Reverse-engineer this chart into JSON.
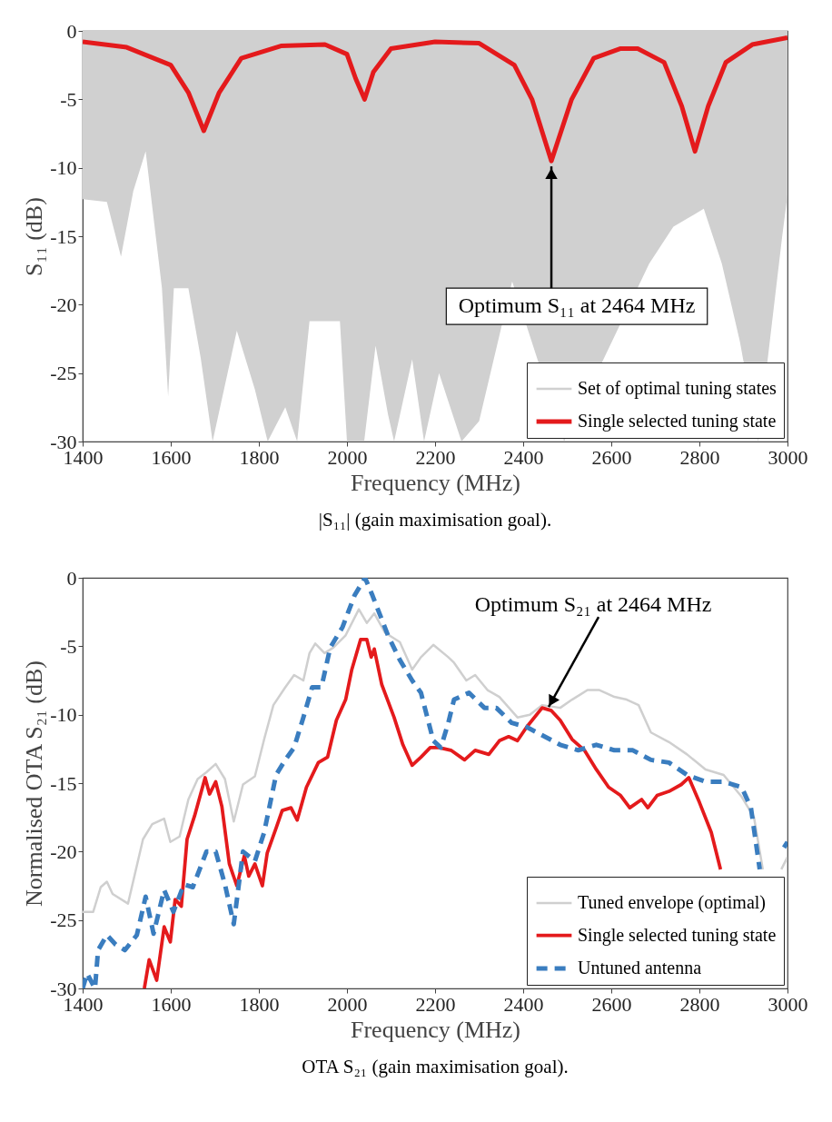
{
  "chart_data": [
    {
      "type": "line",
      "title": "|S₁₁| (gain maximisation goal).",
      "xlabel": "Frequency (MHz)",
      "ylabel": "S₁₁ (dB)",
      "xlim": [
        1400,
        3000
      ],
      "xticks": [
        1400,
        1600,
        1800,
        2000,
        2200,
        2400,
        2600,
        2800,
        3000
      ],
      "ylim": [
        -30,
        0
      ],
      "yticks": [
        -30,
        -25,
        -20,
        -15,
        -10,
        -5,
        0
      ],
      "grid": false,
      "legend": "bottom right",
      "annotations": [
        {
          "text": "Optimum S₁₁ at 2464 MHz",
          "x": 2464,
          "y": -9.5
        }
      ],
      "series": [
        {
          "type": "area",
          "name": "Set of optimal tuning states",
          "color": "#d0d0d0",
          "x": [
            1400,
            1455,
            1487,
            1515,
            1543,
            1580,
            1594,
            1607,
            1640,
            1668,
            1695,
            1750,
            1791,
            1820,
            1860,
            1887,
            1915,
            1950,
            1984,
            2000,
            2039,
            2065,
            2093,
            2107,
            2148,
            2175,
            2209,
            2260,
            2300,
            2375,
            2410,
            2493,
            2548,
            2617,
            2686,
            2741,
            2810,
            2851,
            2892,
            2933,
            2960,
            2988,
            3000
          ],
          "values": [
            -12.3,
            -12.5,
            -16.5,
            -11.7,
            -8.8,
            -18.8,
            -26.7,
            -18.8,
            -18.8,
            -23.9,
            -30,
            -21.9,
            -26.2,
            -30,
            -27.5,
            -30,
            -21.2,
            -21.2,
            -21.2,
            -30,
            -30,
            -23,
            -28,
            -30,
            -24,
            -30,
            -25,
            -30,
            -28.5,
            -18.3,
            null,
            -30,
            null,
            null,
            -17,
            -14.3,
            -13,
            -17,
            -22.7,
            -30,
            null,
            -15,
            -12
          ]
        },
        {
          "name": "Single selected tuning state",
          "color": "#e41a1c",
          "x": [
            1400,
            1500,
            1600,
            1640,
            1675,
            1710,
            1760,
            1850,
            1950,
            2000,
            2020,
            2040,
            2060,
            2100,
            2200,
            2300,
            2380,
            2420,
            2464,
            2510,
            2560,
            2620,
            2660,
            2720,
            2760,
            2790,
            2820,
            2860,
            2920,
            3000
          ],
          "values": [
            -0.8,
            -1.2,
            -2.5,
            -4.5,
            -7.3,
            -4.5,
            -2,
            -1.1,
            -1,
            -1.7,
            -3.5,
            -5,
            -3,
            -1.3,
            -0.8,
            -0.9,
            -2.5,
            -5,
            -9.5,
            -5,
            -2,
            -1.3,
            -1.3,
            -2.3,
            -5.5,
            -8.8,
            -5.5,
            -2.3,
            -1,
            -0.5
          ]
        }
      ]
    },
    {
      "type": "line",
      "title": "OTA S₂₁ (gain maximisation goal).",
      "xlabel": "Frequency (MHz)",
      "ylabel": "Normalised OTA S₂₁ (dB)",
      "xlim": [
        1400,
        3000
      ],
      "xticks": [
        1400,
        1600,
        1800,
        2000,
        2200,
        2400,
        2600,
        2800,
        3000
      ],
      "ylim": [
        -30,
        0
      ],
      "yticks": [
        -30,
        -25,
        -20,
        -15,
        -10,
        -5,
        0
      ],
      "grid": false,
      "legend": "bottom right",
      "annotations": [
        {
          "text": "Optimum S₂₁ at 2464 MHz",
          "x": 2464,
          "y": -9.7
        }
      ],
      "series": [
        {
          "name": "Tuned envelope (optimal)",
          "color": "#cfcfcf",
          "x": [
            1400,
            1424,
            1441,
            1455,
            1468,
            1503,
            1537,
            1558,
            1585,
            1599,
            1620,
            1640,
            1661,
            1681,
            1702,
            1723,
            1743,
            1764,
            1791,
            1812,
            1833,
            1860,
            1880,
            1901,
            1915,
            1928,
            1949,
            1969,
            1997,
            2027,
            2045,
            2062,
            2086,
            2120,
            2148,
            2168,
            2196,
            2230,
            2243,
            2271,
            2291,
            2319,
            2346,
            2387,
            2415,
            2443,
            2484,
            2511,
            2546,
            2573,
            2607,
            2635,
            2662,
            2690,
            2731,
            2772,
            2814,
            2855,
            2896,
            2924,
            2944,
            2965,
            2986,
            3000
          ],
          "values": [
            -24.4,
            -24.4,
            -22.6,
            -22.2,
            -23.1,
            -23.8,
            -19.1,
            -18,
            -17.6,
            -19.3,
            -18.9,
            -16.2,
            -14.7,
            -14.2,
            -13.6,
            -14.7,
            -17.8,
            -15.1,
            -14.5,
            -11.8,
            -9.3,
            -8,
            -7.1,
            -7.5,
            -5.5,
            -4.8,
            -5.5,
            -5.1,
            -4.2,
            -2.3,
            -3.3,
            -2.6,
            -4,
            -4.7,
            -6.7,
            -5.8,
            -4.9,
            -5.8,
            -6.2,
            -7.5,
            -7.1,
            -8.2,
            -8.7,
            -10.2,
            -10,
            -9.3,
            -9.5,
            -8.9,
            -8.2,
            -8.2,
            -8.7,
            -8.9,
            -9.3,
            -11.3,
            -12,
            -12.9,
            -14,
            -14.4,
            -16,
            -17.5,
            -21.3,
            null,
            -21.3,
            -20.4
          ]
        },
        {
          "name": "Single selected tuning state",
          "color": "#e41a1c",
          "x": [
            1540,
            1551,
            1568,
            1585,
            1599,
            1610,
            1624,
            1637,
            1654,
            1678,
            1688,
            1702,
            1716,
            1733,
            1750,
            1767,
            1777,
            1791,
            1808,
            1819,
            1839,
            1853,
            1873,
            1887,
            1908,
            1935,
            1956,
            1976,
            1997,
            2011,
            2031,
            2045,
            2055,
            2062,
            2079,
            2107,
            2127,
            2148,
            2168,
            2189,
            2209,
            2236,
            2267,
            2291,
            2322,
            2346,
            2367,
            2387,
            2408,
            2443,
            2464,
            2484,
            2511,
            2539,
            2566,
            2594,
            2621,
            2642,
            2669,
            2683,
            2704,
            2731,
            2759,
            2776,
            2800,
            2827,
            2848
          ],
          "values": [
            -30,
            -27.9,
            -29.4,
            -25.5,
            -26.6,
            -23.5,
            -24,
            -19.1,
            -17.4,
            -14.6,
            -15.8,
            -14.9,
            -16.7,
            -20.9,
            -22.5,
            -20.3,
            -21.8,
            -20.9,
            -22.5,
            -20.1,
            -18.3,
            -17,
            -16.8,
            -17.7,
            -15.3,
            -13.5,
            -13.1,
            -10.4,
            -8.9,
            -6.7,
            -4.5,
            -4.5,
            -5.8,
            -5.2,
            -7.8,
            -10.2,
            -12.2,
            -13.7,
            -13.1,
            -12.4,
            -12.4,
            -12.6,
            -13.3,
            -12.6,
            -12.9,
            -11.9,
            -11.6,
            -11.9,
            -10.9,
            -9.5,
            -9.7,
            -10.4,
            -11.8,
            -12.6,
            -14,
            -15.3,
            -15.9,
            -16.8,
            -16.2,
            -16.8,
            -15.9,
            -15.6,
            -15.1,
            -14.6,
            -16.4,
            -18.6,
            -21.3
          ]
        },
        {
          "name": "Untuned antenna",
          "color": "#3a7dbf",
          "line_style": "dashed",
          "x": [
            1400,
            1410,
            1428,
            1435,
            1455,
            1475,
            1496,
            1523,
            1543,
            1561,
            1585,
            1606,
            1630,
            1650,
            1681,
            1702,
            1723,
            1743,
            1764,
            1791,
            1812,
            1839,
            1860,
            1880,
            1901,
            1921,
            1942,
            1962,
            1990,
            2017,
            2041,
            2058,
            2093,
            2120,
            2148,
            2168,
            2196,
            2213,
            2230,
            2243,
            2277,
            2312,
            2339,
            2374,
            2408,
            2443,
            2484,
            2525,
            2566,
            2607,
            2649,
            2690,
            2731,
            2772,
            2814,
            2855,
            2896,
            2917,
            2937,
            2955,
            2965,
            2979,
            2992,
            3000
          ],
          "values": [
            -30,
            -28.9,
            -30,
            -27.2,
            -26.1,
            -26.8,
            -27.2,
            -26.1,
            -23.3,
            -26,
            -22.8,
            -24.4,
            -22.4,
            -22.6,
            -20,
            -20,
            -22.4,
            -25.3,
            -20,
            -20.7,
            -18.6,
            -14.4,
            -13.3,
            -12.4,
            -10.2,
            -8,
            -8,
            -5.1,
            -3.6,
            -1.3,
            0,
            -1.3,
            -4.2,
            -6,
            -7.5,
            -8.4,
            -11.9,
            -12.4,
            -10.6,
            -8.9,
            -8.4,
            -9.5,
            -9.5,
            -10.6,
            -10.9,
            -11.5,
            -12.2,
            -12.6,
            -12.2,
            -12.6,
            -12.6,
            -13.3,
            -13.5,
            -14.4,
            -14.9,
            -14.9,
            -15.3,
            -16.8,
            -21.3,
            null,
            null,
            null,
            -19.7,
            -19.3
          ]
        }
      ]
    }
  ]
}
